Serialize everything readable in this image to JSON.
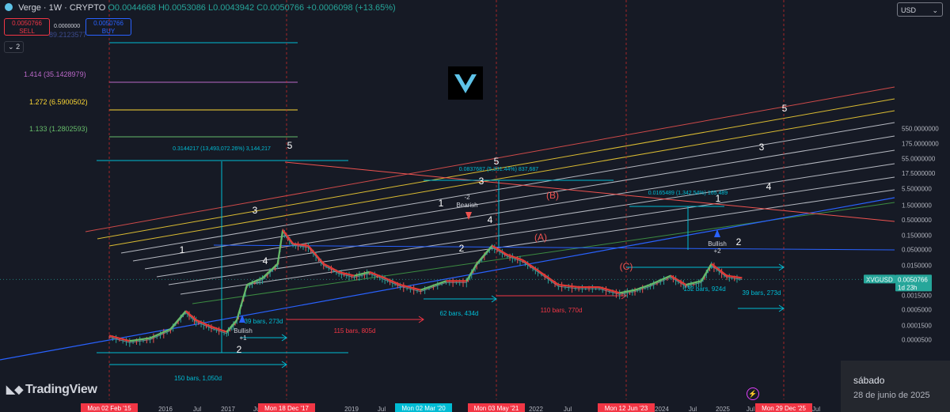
{
  "header": {
    "symbol_line": "Verge · 1W · CRYPTO",
    "ohlc": "O0.0044668 H0.0053086 L0.0043942 C0.0050766 +0.0006098 (+13.65%)"
  },
  "trade": {
    "sell_price": "0.0050766",
    "sell_label": "SELL",
    "buy_price": "0.0050766",
    "buy_label": "BUY",
    "spread": "0.0000000"
  },
  "layers_label": "2",
  "currency": "USD",
  "tv_brand": "TradingView",
  "clock": {
    "day": "sábado",
    "date": "28 de junio de 2025"
  },
  "chart_data": {
    "type": "line",
    "symbol": "XVGUSD",
    "interval": "1W",
    "scale": "log",
    "ylim": [
      3.15e-05,
      1800
    ],
    "grid": false,
    "y_ticks": [
      "550.0000000",
      "175.0000000",
      "55.0000000",
      "17.5000000",
      "5.5000000",
      "1.5000000",
      "0.5000000",
      "0.1500000",
      "0.0500000",
      "0.0150000",
      "0.0050000",
      "0.0015000",
      "0.0005000",
      "0.0001500",
      "0.0000500"
    ],
    "x_ticks": [
      "2016",
      "Jul",
      "2017",
      "Jul",
      "2019",
      "Jul",
      "2022",
      "Jul",
      "2024",
      "Jul",
      "2025",
      "Jul",
      "Jul"
    ],
    "x_highlights": [
      {
        "label": "Mon 02 Feb '15",
        "color": "#f23645"
      },
      {
        "label": "Mon 18 Dec '17",
        "color": "#f23645"
      },
      {
        "label": "Mon 02 Mar '20",
        "color": "#00bcd4"
      },
      {
        "label": "Mon 03 May '21",
        "color": "#f23645"
      },
      {
        "label": "Mon 12 Jun '23",
        "color": "#f23645"
      },
      {
        "label": "Mon 29 Dec '25",
        "color": "#f23645"
      }
    ],
    "last_price": {
      "symbol": "XVGUSD",
      "value": "0.0050766",
      "countdown": "1d 23h"
    },
    "fib_levels": [
      {
        "label": "89.2123577",
        "color": "#00bcd4"
      },
      {
        "label": "1.414 (35.1428979)",
        "color": "#ba68c8"
      },
      {
        "label": "1.272 (6.5900502)",
        "color": "#fdd835"
      },
      {
        "label": "1.133 (1.2802593)",
        "color": "#66bb6a"
      }
    ],
    "price_ranges": [
      {
        "label": "0.3144217 (13,493,072.26%) 3,144,217"
      },
      {
        "label": "0.0837687 (5,331.44%) 837,687"
      },
      {
        "label": "0.0165489 (1,342.54%) 165,489"
      }
    ],
    "date_ranges": [
      {
        "label": "150 bars, 1,050d",
        "color": "#00bcd4"
      },
      {
        "label": "39 bars, 273d",
        "color": "#00bcd4"
      },
      {
        "label": "115 bars, 805d",
        "color": "#f23645"
      },
      {
        "label": "62 bars, 434d",
        "color": "#00bcd4"
      },
      {
        "label": "110 bars, 770d",
        "color": "#f23645"
      },
      {
        "label": "132 bars, 924d",
        "color": "#00bcd4"
      },
      {
        "label": "39 bars, 273d",
        "color": "#00bcd4"
      }
    ],
    "wave_labels": [
      "1",
      "2",
      "3",
      "4",
      "5",
      "1",
      "2",
      "3",
      "4",
      "5",
      "(A)",
      "(B)",
      "(C)",
      "1",
      "2",
      "3",
      "4",
      "5"
    ],
    "signal_labels": [
      "Bullish",
      "+1",
      "Bearish",
      "-2",
      "Bullish",
      "+2"
    ],
    "series": [
      {
        "name": "XVGUSD",
        "points": [
          [
            "2015-02",
            6e-05
          ],
          [
            "2015-06",
            4e-05
          ],
          [
            "2015-10",
            5e-05
          ],
          [
            "2016-02",
            0.0001
          ],
          [
            "2016-05",
            0.0004
          ],
          [
            "2016-07",
            0.0002
          ],
          [
            "2016-10",
            0.00012
          ],
          [
            "2017-01",
            8e-05
          ],
          [
            "2017-03",
            0.0002
          ],
          [
            "2017-05",
            0.003
          ],
          [
            "2017-08",
            0.005
          ],
          [
            "2017-11",
            0.015
          ],
          [
            "2017-12",
            0.2
          ],
          [
            "2018-02",
            0.07
          ],
          [
            "2018-05",
            0.06
          ],
          [
            "2018-08",
            0.015
          ],
          [
            "2018-11",
            0.008
          ],
          [
            "2019-02",
            0.006
          ],
          [
            "2019-05",
            0.008
          ],
          [
            "2019-08",
            0.005
          ],
          [
            "2019-11",
            0.003
          ],
          [
            "2020-03",
            0.002
          ],
          [
            "2020-08",
            0.004
          ],
          [
            "2020-12",
            0.004
          ],
          [
            "2021-02",
            0.015
          ],
          [
            "2021-05",
            0.06
          ],
          [
            "2021-08",
            0.03
          ],
          [
            "2021-11",
            0.02
          ],
          [
            "2022-02",
            0.009
          ],
          [
            "2022-06",
            0.003
          ],
          [
            "2022-10",
            0.0025
          ],
          [
            "2023-02",
            0.0025
          ],
          [
            "2023-06",
            0.0016
          ],
          [
            "2023-09",
            0.002
          ],
          [
            "2023-12",
            0.003
          ],
          [
            "2024-04",
            0.006
          ],
          [
            "2024-07",
            0.003
          ],
          [
            "2024-10",
            0.004
          ],
          [
            "2024-12",
            0.015
          ],
          [
            "2025-03",
            0.006
          ],
          [
            "2025-06",
            0.0050766
          ]
        ]
      }
    ]
  }
}
